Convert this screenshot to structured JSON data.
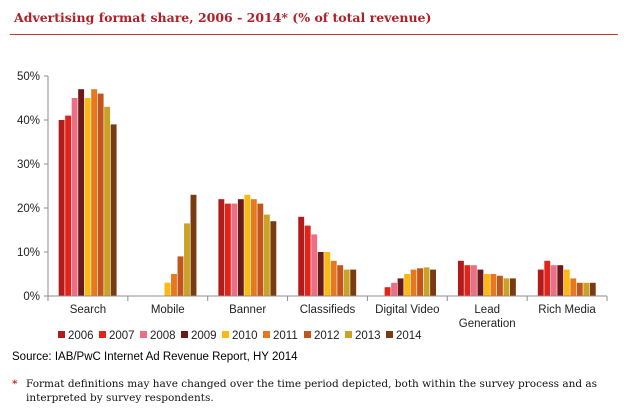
{
  "header": {
    "title": "Advertising format share, 2006 - 2014* (% of total revenue)"
  },
  "chart_data": {
    "type": "bar",
    "title": "Advertising format share, 2006 - 2014* (% of total revenue)",
    "xlabel": "",
    "ylabel": "",
    "ylim": [
      0,
      50
    ],
    "yticks": [
      "0%",
      "10%",
      "20%",
      "30%",
      "40%",
      "50%"
    ],
    "grid": false,
    "legend_position": "bottom",
    "categories": [
      "Search",
      "Mobile",
      "Banner",
      "Classifieds",
      "Digital Video",
      "Lead Generation",
      "Rich Media"
    ],
    "category_lines": [
      [
        "Search"
      ],
      [
        "Mobile"
      ],
      [
        "Banner"
      ],
      [
        "Classifieds"
      ],
      [
        "Digital Video"
      ],
      [
        "Lead",
        "Generation"
      ],
      [
        "Rich Media"
      ]
    ],
    "series": [
      {
        "name": "2006",
        "color": "#b31b1b",
        "values": [
          40,
          0,
          22,
          18,
          0,
          8,
          6
        ]
      },
      {
        "name": "2007",
        "color": "#e2231a",
        "values": [
          41,
          0,
          21,
          16,
          2,
          7,
          8
        ]
      },
      {
        "name": "2008",
        "color": "#ec6f86",
        "values": [
          45,
          0,
          21,
          14,
          3,
          7,
          7
        ]
      },
      {
        "name": "2009",
        "color": "#6b1a1a",
        "values": [
          47,
          0,
          22,
          10,
          4,
          6,
          7
        ]
      },
      {
        "name": "2010",
        "color": "#fdb813",
        "values": [
          45,
          3,
          23,
          10,
          5,
          5,
          6
        ]
      },
      {
        "name": "2011",
        "color": "#e8781e",
        "values": [
          47,
          5,
          22,
          8,
          6,
          5,
          4
        ]
      },
      {
        "name": "2012",
        "color": "#c0561b",
        "values": [
          46,
          9,
          21,
          7,
          6.3,
          4.6,
          3
        ]
      },
      {
        "name": "2013",
        "color": "#c9a227",
        "values": [
          43,
          16.5,
          18.5,
          6,
          6.5,
          4,
          3
        ]
      },
      {
        "name": "2014",
        "color": "#7a3b10",
        "values": [
          39,
          23,
          17,
          6,
          6,
          4,
          3
        ]
      }
    ]
  },
  "source": "Source: IAB/PwC Internet Ad Revenue Report, HY 2014",
  "footnote": {
    "marker": "*",
    "text": "Format definitions may have changed over the time period depicted, both within the survey process and as interpreted by survey respondents."
  }
}
